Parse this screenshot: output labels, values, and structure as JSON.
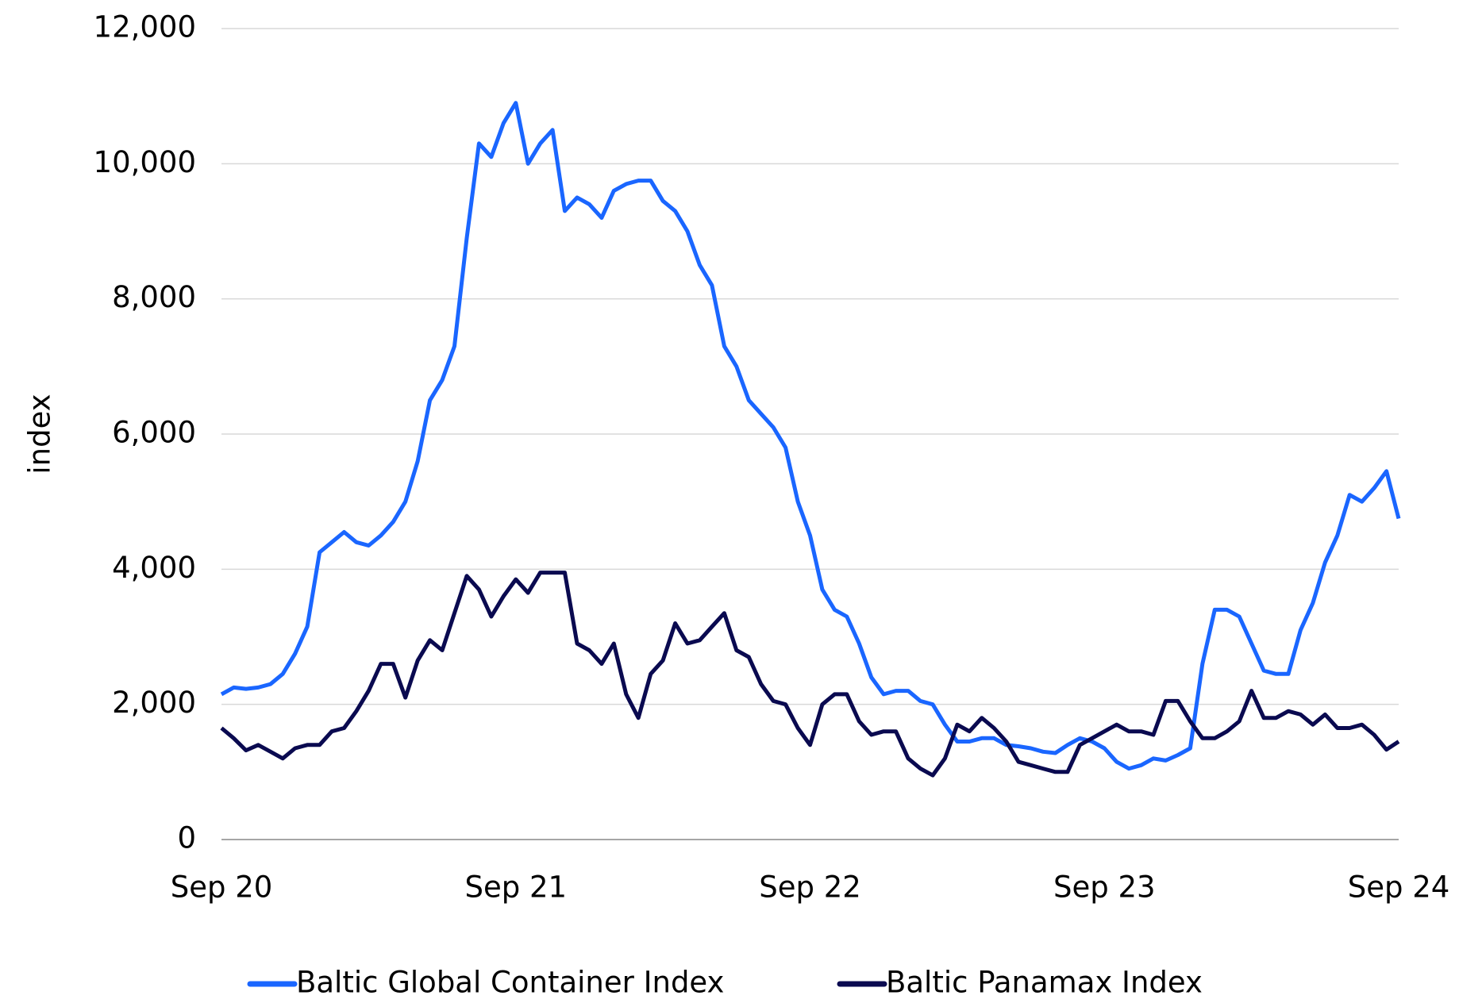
{
  "chart_data": {
    "type": "line",
    "y_label": "index",
    "categories": [
      "Sep 20",
      null,
      null,
      null,
      null,
      null,
      null,
      null,
      null,
      null,
      null,
      null,
      null,
      null,
      null,
      null,
      null,
      null,
      null,
      null,
      null,
      null,
      null,
      null,
      "Sep 21",
      null,
      null,
      null,
      null,
      null,
      null,
      null,
      null,
      null,
      null,
      null,
      null,
      null,
      null,
      null,
      null,
      null,
      null,
      null,
      null,
      null,
      null,
      null,
      "Sep 22",
      null,
      null,
      null,
      null,
      null,
      null,
      null,
      null,
      null,
      null,
      null,
      null,
      null,
      null,
      null,
      null,
      null,
      null,
      null,
      null,
      null,
      null,
      null,
      "Sep 23",
      null,
      null,
      null,
      null,
      null,
      null,
      null,
      null,
      null,
      null,
      null,
      null,
      null,
      null,
      null,
      null,
      null,
      null,
      null,
      null,
      null,
      null,
      null,
      "Sep 24"
    ],
    "series": [
      {
        "name": "Baltic Global Container Index",
        "color": "#1a66ff",
        "values": [
          2150,
          2250,
          2230,
          2250,
          2300,
          2450,
          2750,
          3150,
          4250,
          4400,
          4550,
          4400,
          4350,
          4500,
          4700,
          5000,
          5600,
          6500,
          6800,
          7300,
          8900,
          10300,
          10100,
          10600,
          10900,
          10000,
          10300,
          10500,
          9300,
          9500,
          9400,
          9200,
          9600,
          9700,
          9750,
          9750,
          9450,
          9300,
          9000,
          8500,
          8200,
          7300,
          7000,
          6500,
          6300,
          6100,
          5800,
          5000,
          4500,
          3700,
          3400,
          3300,
          2900,
          2400,
          2150,
          2200,
          2200,
          2050,
          2000,
          1700,
          1450,
          1450,
          1500,
          1500,
          1400,
          1380,
          1350,
          1300,
          1280,
          1400,
          1500,
          1450,
          1350,
          1150,
          1050,
          1100,
          1200,
          1170,
          1250,
          1350,
          2600,
          3400,
          3400,
          3300,
          2900,
          2500,
          2450,
          2450,
          3100,
          3500,
          4100,
          4500,
          5100,
          5000,
          5200,
          5450,
          4750
        ]
      },
      {
        "name": "Baltic Panamax Index",
        "color": "#0a0a50",
        "values": [
          1650,
          1500,
          1320,
          1400,
          1300,
          1200,
          1350,
          1400,
          1400,
          1600,
          1650,
          1900,
          2200,
          2600,
          2600,
          2100,
          2650,
          2950,
          2800,
          3350,
          3900,
          3700,
          3300,
          3600,
          3850,
          3650,
          3950,
          3950,
          3950,
          2900,
          2800,
          2600,
          2900,
          2150,
          1800,
          2450,
          2650,
          3200,
          2900,
          2950,
          3150,
          3350,
          2800,
          2700,
          2300,
          2050,
          2000,
          1650,
          1400,
          2000,
          2150,
          2150,
          1750,
          1550,
          1600,
          1600,
          1200,
          1050,
          950,
          1200,
          1700,
          1600,
          1800,
          1650,
          1450,
          1150,
          1100,
          1050,
          1000,
          1000,
          1400,
          1500,
          1600,
          1700,
          1600,
          1600,
          1550,
          2050,
          2050,
          1750,
          1500,
          1500,
          1600,
          1750,
          2200,
          1800,
          1800,
          1900,
          1850,
          1700,
          1850,
          1650,
          1650,
          1700,
          1550,
          1330,
          1450
        ]
      }
    ],
    "ylim": [
      0,
      12000
    ],
    "yticks": [
      0,
      {
        "value": 2000,
        "label": "2,000"
      },
      {
        "value": 4000,
        "label": "4,000"
      },
      {
        "value": 6000,
        "label": "6,000"
      },
      {
        "value": 8000,
        "label": "8,000"
      },
      {
        "value": 10000,
        "label": "10,000"
      },
      {
        "value": 12000,
        "label": "12,000"
      }
    ],
    "grid": true,
    "legend": "bottom"
  }
}
